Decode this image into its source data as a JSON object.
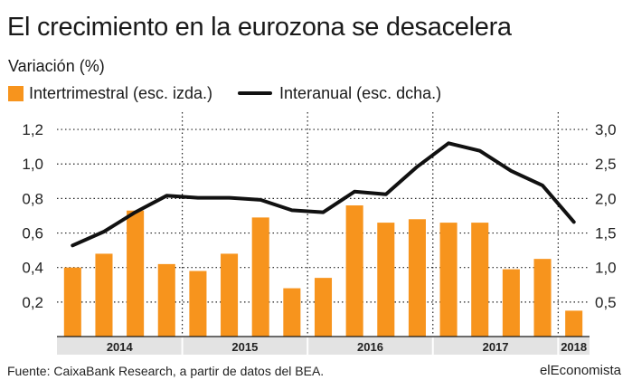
{
  "chart_data": {
    "type": "bar",
    "title": "El crecimiento en la eurozona se desacelera",
    "subtitle": "Variación (%)",
    "legend": {
      "bars": "Intertrimestral (esc. izda.)",
      "line": "Interanual (esc. dcha.)"
    },
    "colors": {
      "bars": "#f7941d",
      "line": "#111111",
      "grid": "#222222"
    },
    "quarters": [
      "2014-T1",
      "2014-T2",
      "2014-T3",
      "2014-T4",
      "2015-T1",
      "2015-T2",
      "2015-T3",
      "2015-T4",
      "2016-T1",
      "2016-T2",
      "2016-T3",
      "2016-T4",
      "2017-T1",
      "2017-T2",
      "2017-T3",
      "2017-T4",
      "2018-T1"
    ],
    "years": [
      {
        "label": "2014",
        "start": 0,
        "count": 4
      },
      {
        "label": "2015",
        "start": 4,
        "count": 4
      },
      {
        "label": "2016",
        "start": 8,
        "count": 4
      },
      {
        "label": "2017",
        "start": 12,
        "count": 4
      },
      {
        "label": "2018",
        "start": 16,
        "count": 1
      }
    ],
    "series": [
      {
        "name": "Intertrimestral (esc. izda.)",
        "type": "bar",
        "axis": "left",
        "values": [
          0.4,
          0.48,
          0.73,
          0.42,
          0.38,
          0.48,
          0.69,
          0.28,
          0.34,
          0.76,
          0.66,
          0.68,
          0.66,
          0.66,
          0.39,
          0.45,
          0.15
        ]
      },
      {
        "name": "Interanual (esc. dcha.)",
        "type": "line",
        "axis": "right",
        "values": [
          1.32,
          1.52,
          1.8,
          2.04,
          2.01,
          2.01,
          1.98,
          1.83,
          1.8,
          2.1,
          2.06,
          2.46,
          2.8,
          2.69,
          2.4,
          2.19,
          1.66
        ]
      }
    ],
    "y_left": {
      "ylim": [
        0,
        1.3
      ],
      "ticks": [
        0.2,
        0.4,
        0.6,
        0.8,
        1.0,
        1.2
      ],
      "tick_labels": [
        "0,2",
        "0,4",
        "0,6",
        "0,8",
        "1,0",
        "1,2"
      ]
    },
    "y_right": {
      "ylim": [
        0,
        3.25
      ],
      "ticks": [
        0.5,
        1.0,
        1.5,
        2.0,
        2.5,
        3.0
      ],
      "tick_labels": [
        "0,5",
        "1,0",
        "1,5",
        "2,0",
        "2,5",
        "3,0"
      ]
    },
    "source": "Fuente: CaixaBank Research, a partir de datos del BEA.",
    "brand": "elEconomista"
  }
}
